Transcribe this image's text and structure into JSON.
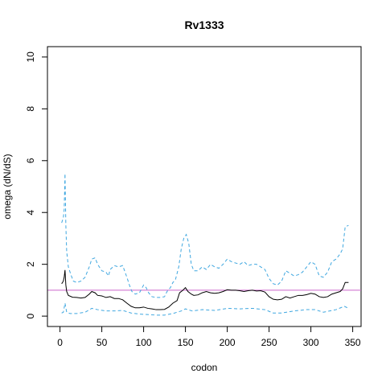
{
  "chart_data": {
    "type": "line",
    "title": "Rv1333",
    "xlabel": "codon",
    "ylabel": "omega (dN/dS)",
    "xlim": [
      -15,
      360
    ],
    "ylim": [
      -0.4,
      10.4
    ],
    "xticks": [
      0,
      50,
      100,
      150,
      200,
      250,
      300,
      350
    ],
    "yticks": [
      0,
      2,
      4,
      6,
      8,
      10
    ],
    "reference_line": {
      "y": 1,
      "color": "#cc66cc"
    },
    "grid": false,
    "series": [
      {
        "color": "#000000",
        "dash": "solid",
        "points": [
          [
            2,
            1.25
          ],
          [
            3,
            1.3
          ],
          [
            4,
            1.35
          ],
          [
            5,
            1.5
          ],
          [
            6,
            1.78
          ],
          [
            7,
            1.2
          ],
          [
            8,
            0.95
          ],
          [
            10,
            0.8
          ],
          [
            15,
            0.73
          ],
          [
            20,
            0.72
          ],
          [
            25,
            0.7
          ],
          [
            30,
            0.72
          ],
          [
            35,
            0.85
          ],
          [
            38,
            0.95
          ],
          [
            42,
            0.9
          ],
          [
            45,
            0.8
          ],
          [
            50,
            0.78
          ],
          [
            55,
            0.72
          ],
          [
            60,
            0.75
          ],
          [
            65,
            0.68
          ],
          [
            70,
            0.68
          ],
          [
            75,
            0.63
          ],
          [
            80,
            0.5
          ],
          [
            85,
            0.38
          ],
          [
            90,
            0.32
          ],
          [
            95,
            0.32
          ],
          [
            100,
            0.35
          ],
          [
            105,
            0.3
          ],
          [
            110,
            0.28
          ],
          [
            115,
            0.25
          ],
          [
            120,
            0.25
          ],
          [
            125,
            0.26
          ],
          [
            130,
            0.35
          ],
          [
            135,
            0.5
          ],
          [
            140,
            0.6
          ],
          [
            143,
            0.9
          ],
          [
            147,
            1.0
          ],
          [
            150,
            1.1
          ],
          [
            153,
            0.95
          ],
          [
            157,
            0.85
          ],
          [
            160,
            0.8
          ],
          [
            165,
            0.82
          ],
          [
            170,
            0.9
          ],
          [
            175,
            0.95
          ],
          [
            180,
            0.9
          ],
          [
            185,
            0.88
          ],
          [
            190,
            0.9
          ],
          [
            195,
            0.95
          ],
          [
            200,
            1.02
          ],
          [
            205,
            1.0
          ],
          [
            210,
            1.0
          ],
          [
            215,
            0.98
          ],
          [
            220,
            0.95
          ],
          [
            225,
            0.98
          ],
          [
            230,
            1.0
          ],
          [
            235,
            0.97
          ],
          [
            240,
            0.98
          ],
          [
            245,
            0.93
          ],
          [
            250,
            0.75
          ],
          [
            255,
            0.65
          ],
          [
            260,
            0.63
          ],
          [
            265,
            0.65
          ],
          [
            270,
            0.75
          ],
          [
            275,
            0.7
          ],
          [
            280,
            0.75
          ],
          [
            285,
            0.8
          ],
          [
            290,
            0.8
          ],
          [
            295,
            0.83
          ],
          [
            300,
            0.88
          ],
          [
            305,
            0.85
          ],
          [
            310,
            0.75
          ],
          [
            315,
            0.72
          ],
          [
            320,
            0.75
          ],
          [
            325,
            0.85
          ],
          [
            330,
            0.9
          ],
          [
            335,
            0.95
          ],
          [
            338,
            1.05
          ],
          [
            341,
            1.3
          ],
          [
            345,
            1.3
          ]
        ]
      },
      {
        "color": "#3fa7e0",
        "dash": "dashed",
        "points": [
          [
            2,
            3.6
          ],
          [
            4,
            3.8
          ],
          [
            5,
            4.1
          ],
          [
            6,
            5.5
          ],
          [
            7,
            3.5
          ],
          [
            8,
            2.5
          ],
          [
            10,
            1.9
          ],
          [
            13,
            1.6
          ],
          [
            16,
            1.35
          ],
          [
            20,
            1.3
          ],
          [
            25,
            1.35
          ],
          [
            30,
            1.5
          ],
          [
            35,
            1.9
          ],
          [
            38,
            2.2
          ],
          [
            42,
            2.25
          ],
          [
            45,
            2.0
          ],
          [
            50,
            1.75
          ],
          [
            55,
            1.7
          ],
          [
            58,
            1.55
          ],
          [
            60,
            1.8
          ],
          [
            65,
            1.95
          ],
          [
            70,
            1.9
          ],
          [
            75,
            1.95
          ],
          [
            80,
            1.5
          ],
          [
            83,
            1.2
          ],
          [
            86,
            0.95
          ],
          [
            90,
            0.85
          ],
          [
            95,
            0.9
          ],
          [
            100,
            1.2
          ],
          [
            103,
            1.1
          ],
          [
            106,
            0.9
          ],
          [
            110,
            0.75
          ],
          [
            115,
            0.72
          ],
          [
            120,
            0.72
          ],
          [
            125,
            0.75
          ],
          [
            128,
            0.95
          ],
          [
            132,
            1.1
          ],
          [
            135,
            1.3
          ],
          [
            138,
            1.4
          ],
          [
            142,
            1.9
          ],
          [
            145,
            2.6
          ],
          [
            148,
            3.0
          ],
          [
            151,
            3.15
          ],
          [
            154,
            2.8
          ],
          [
            157,
            2.0
          ],
          [
            160,
            1.75
          ],
          [
            165,
            1.75
          ],
          [
            170,
            1.9
          ],
          [
            175,
            1.8
          ],
          [
            180,
            2.0
          ],
          [
            185,
            1.9
          ],
          [
            190,
            1.85
          ],
          [
            195,
            2.0
          ],
          [
            200,
            2.2
          ],
          [
            205,
            2.1
          ],
          [
            210,
            2.05
          ],
          [
            215,
            2.0
          ],
          [
            220,
            2.1
          ],
          [
            225,
            1.95
          ],
          [
            230,
            2.0
          ],
          [
            235,
            2.0
          ],
          [
            240,
            1.9
          ],
          [
            245,
            1.8
          ],
          [
            250,
            1.45
          ],
          [
            255,
            1.25
          ],
          [
            260,
            1.2
          ],
          [
            265,
            1.35
          ],
          [
            270,
            1.75
          ],
          [
            275,
            1.65
          ],
          [
            280,
            1.55
          ],
          [
            285,
            1.6
          ],
          [
            290,
            1.7
          ],
          [
            295,
            1.9
          ],
          [
            300,
            2.1
          ],
          [
            305,
            2.0
          ],
          [
            310,
            1.55
          ],
          [
            315,
            1.5
          ],
          [
            320,
            1.7
          ],
          [
            325,
            2.1
          ],
          [
            330,
            2.2
          ],
          [
            335,
            2.4
          ],
          [
            338,
            2.6
          ],
          [
            341,
            3.45
          ],
          [
            345,
            3.5
          ]
        ]
      },
      {
        "color": "#3fa7e0",
        "dash": "dashed",
        "points": [
          [
            2,
            0.12
          ],
          [
            4,
            0.15
          ],
          [
            6,
            0.5
          ],
          [
            8,
            0.15
          ],
          [
            12,
            0.1
          ],
          [
            20,
            0.1
          ],
          [
            30,
            0.15
          ],
          [
            38,
            0.3
          ],
          [
            45,
            0.25
          ],
          [
            55,
            0.2
          ],
          [
            65,
            0.2
          ],
          [
            75,
            0.22
          ],
          [
            85,
            0.12
          ],
          [
            95,
            0.08
          ],
          [
            105,
            0.06
          ],
          [
            115,
            0.04
          ],
          [
            125,
            0.04
          ],
          [
            135,
            0.1
          ],
          [
            145,
            0.2
          ],
          [
            150,
            0.28
          ],
          [
            158,
            0.2
          ],
          [
            170,
            0.25
          ],
          [
            185,
            0.22
          ],
          [
            200,
            0.3
          ],
          [
            215,
            0.28
          ],
          [
            230,
            0.3
          ],
          [
            245,
            0.25
          ],
          [
            255,
            0.12
          ],
          [
            265,
            0.12
          ],
          [
            280,
            0.2
          ],
          [
            295,
            0.25
          ],
          [
            305,
            0.25
          ],
          [
            315,
            0.15
          ],
          [
            330,
            0.25
          ],
          [
            340,
            0.38
          ],
          [
            345,
            0.3
          ]
        ]
      }
    ]
  }
}
